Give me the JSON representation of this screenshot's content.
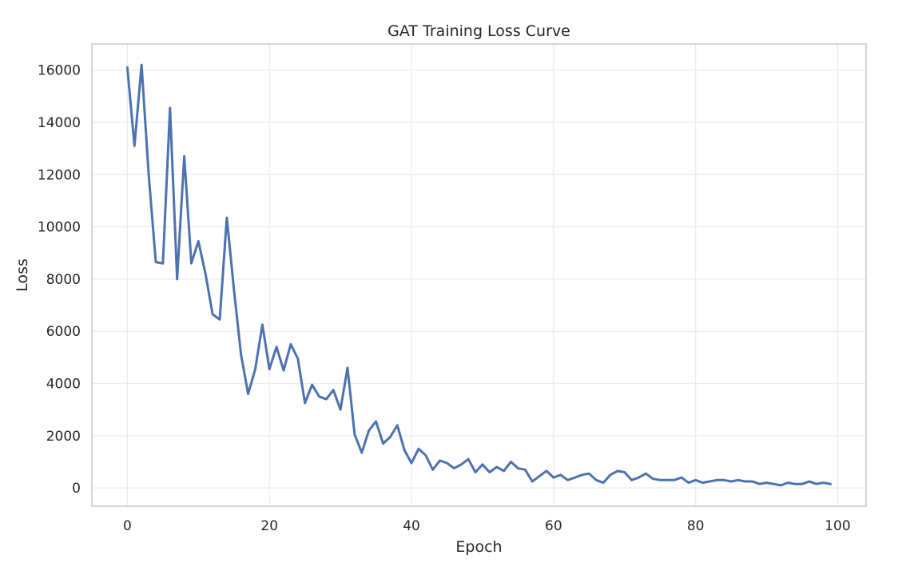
{
  "chart_data": {
    "type": "line",
    "title": "GAT Training Loss Curve",
    "xlabel": "Epoch",
    "ylabel": "Loss",
    "xlim": [
      -5,
      104
    ],
    "ylim": [
      -700,
      17000
    ],
    "xticks": [
      0,
      20,
      40,
      60,
      80,
      100
    ],
    "yticks": [
      0,
      2000,
      4000,
      6000,
      8000,
      10000,
      12000,
      14000,
      16000
    ],
    "grid": true,
    "legend": "none",
    "series": [
      {
        "color": "#4c72b0",
        "x": [
          0,
          1,
          2,
          3,
          4,
          5,
          6,
          7,
          8,
          9,
          10,
          11,
          12,
          13,
          14,
          15,
          16,
          17,
          18,
          19,
          20,
          21,
          22,
          23,
          24,
          25,
          26,
          27,
          28,
          29,
          30,
          31,
          32,
          33,
          34,
          35,
          36,
          37,
          38,
          39,
          40,
          41,
          42,
          43,
          44,
          45,
          46,
          47,
          48,
          49,
          50,
          51,
          52,
          53,
          54,
          55,
          56,
          57,
          58,
          59,
          60,
          61,
          62,
          63,
          64,
          65,
          66,
          67,
          68,
          69,
          70,
          71,
          72,
          73,
          74,
          75,
          76,
          77,
          78,
          79,
          80,
          81,
          82,
          83,
          84,
          85,
          86,
          87,
          88,
          89,
          90,
          91,
          92,
          93,
          94,
          95,
          96,
          97,
          98,
          99
        ],
        "values": [
          16100,
          13100,
          16200,
          12000,
          8650,
          8600,
          14550,
          8000,
          12700,
          8600,
          9450,
          8200,
          6650,
          6450,
          10350,
          7600,
          5100,
          3600,
          4550,
          6250,
          4550,
          5400,
          4500,
          5500,
          4950,
          3250,
          3950,
          3500,
          3400,
          3750,
          3000,
          4600,
          2050,
          1350,
          2200,
          2550,
          1700,
          1950,
          2400,
          1450,
          950,
          1500,
          1250,
          700,
          1050,
          950,
          750,
          900,
          1100,
          600,
          900,
          600,
          800,
          650,
          1000,
          750,
          700,
          250,
          450,
          650,
          400,
          500,
          300,
          400,
          500,
          550,
          300,
          200,
          500,
          650,
          600,
          300,
          400,
          550,
          350,
          300,
          300,
          300,
          400,
          200,
          300,
          200,
          250,
          300,
          300,
          250,
          300,
          250,
          250,
          150,
          200,
          150,
          100,
          200,
          150,
          150,
          250,
          150,
          200,
          150
        ]
      }
    ]
  }
}
